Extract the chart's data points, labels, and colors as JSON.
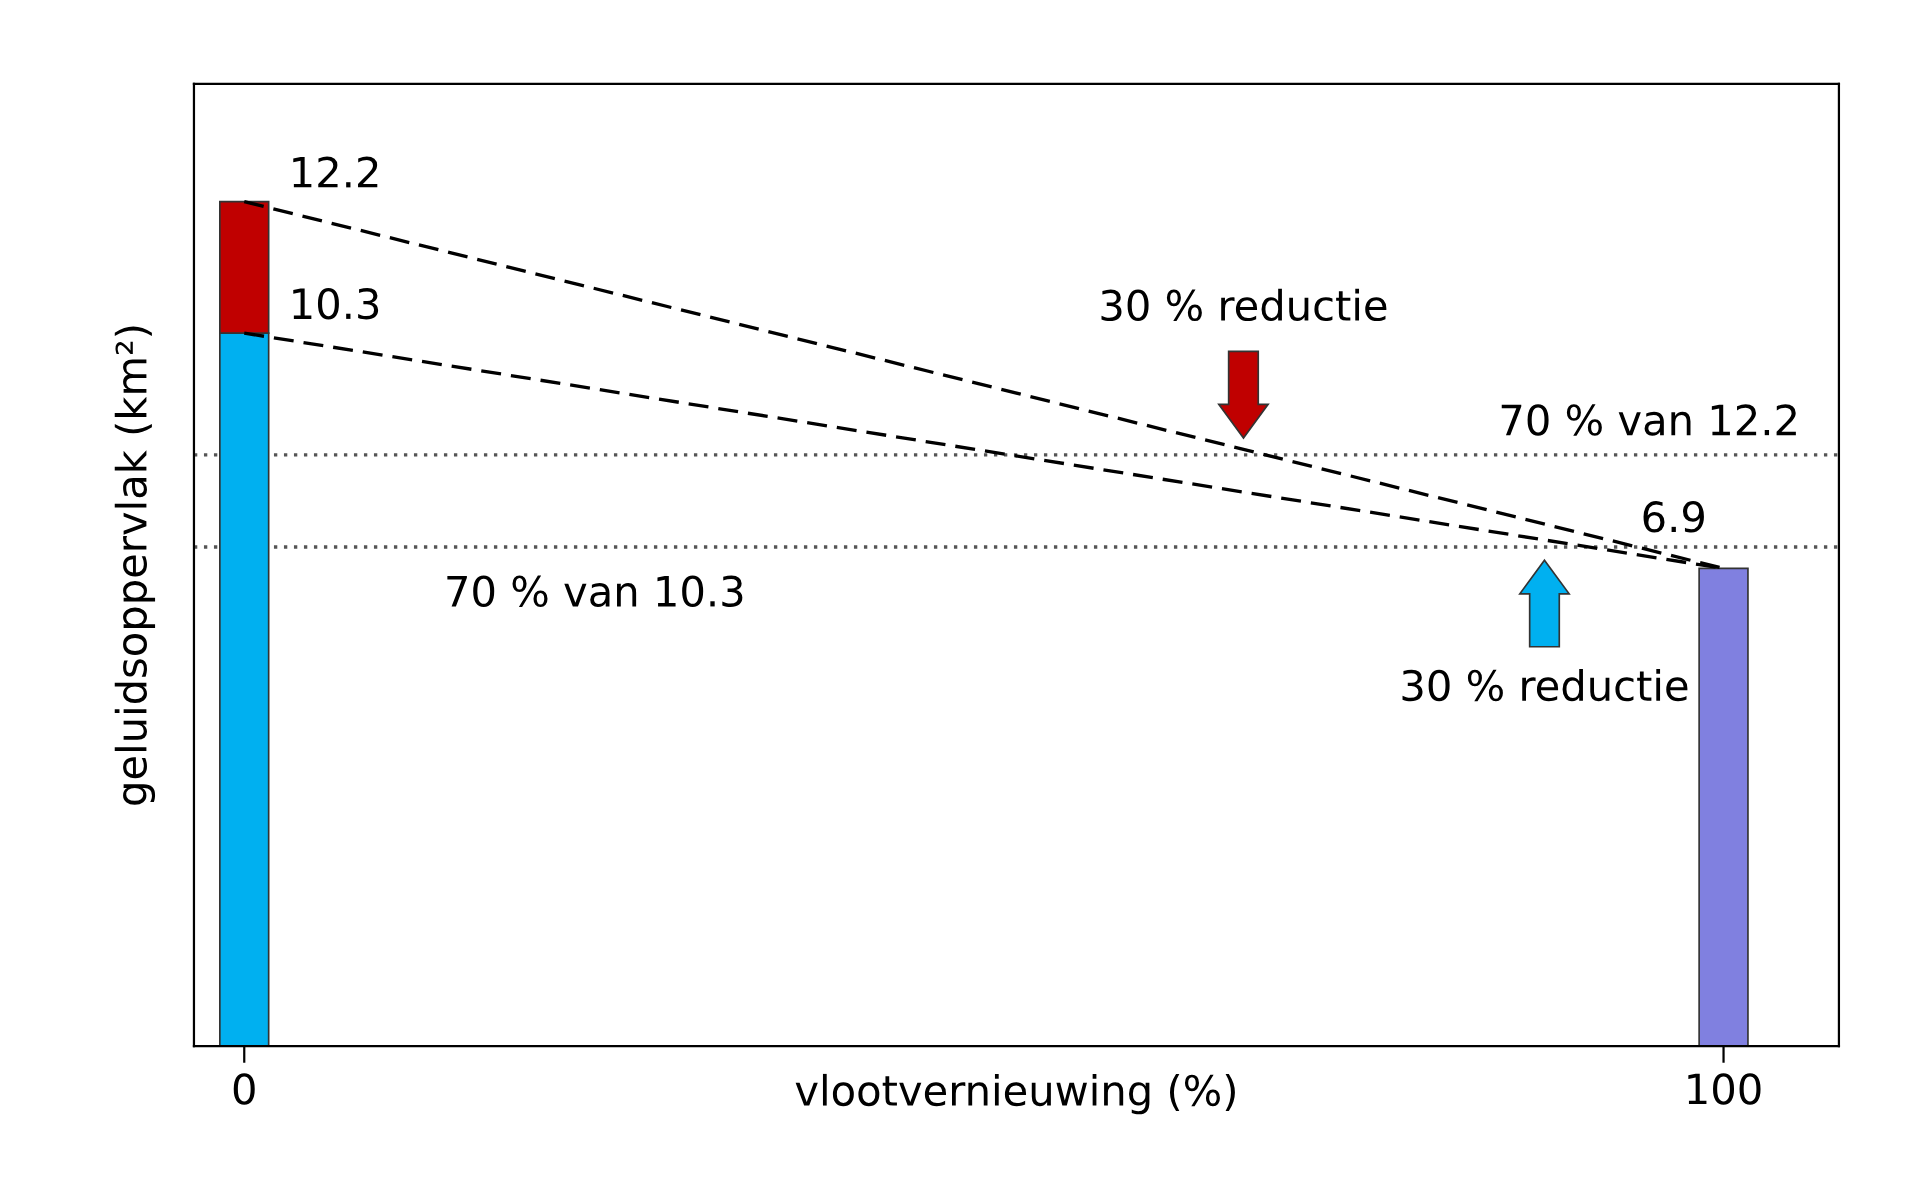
{
  "chart_data": {
    "type": "bar",
    "xlabel": "vlootvernieuwing (%)",
    "ylabel": "geluidsoppervlak (km²)",
    "x": [
      0,
      100
    ],
    "stacked": true,
    "series": [
      {
        "colors": [
          "#00b0f0",
          "#8080e0"
        ],
        "values": [
          10.3,
          6.9
        ]
      },
      {
        "color": "#c00000",
        "values": [
          1.9,
          null
        ]
      },
      {
        "type": "line",
        "values": [
          12.2,
          6.9
        ],
        "color": "#000000",
        "line_style": "dashed",
        "value_labels": [
          "12.2",
          null
        ]
      },
      {
        "type": "line",
        "values": [
          10.3,
          6.9
        ],
        "color": "#000000",
        "line_style": "dashed",
        "value_labels": [
          "10.3",
          "6.9"
        ]
      }
    ],
    "ref_lines": [
      {
        "axis": "y",
        "value": 8.54,
        "label": "70 % van 12.2",
        "color": "#555555",
        "line_style": "dotted"
      },
      {
        "axis": "y",
        "value": 7.21,
        "label": "70 % van 10.3",
        "color": "#555555",
        "line_style": "dotted"
      }
    ],
    "annotations": [
      "30 % reductie",
      "30 % reductie"
    ],
    "xlim": [
      -3.4,
      107.8
    ],
    "ylim": [
      0,
      13.9
    ],
    "xticks": [
      0,
      100
    ],
    "tick_labels": "x",
    "legend": false,
    "grid": false
  }
}
